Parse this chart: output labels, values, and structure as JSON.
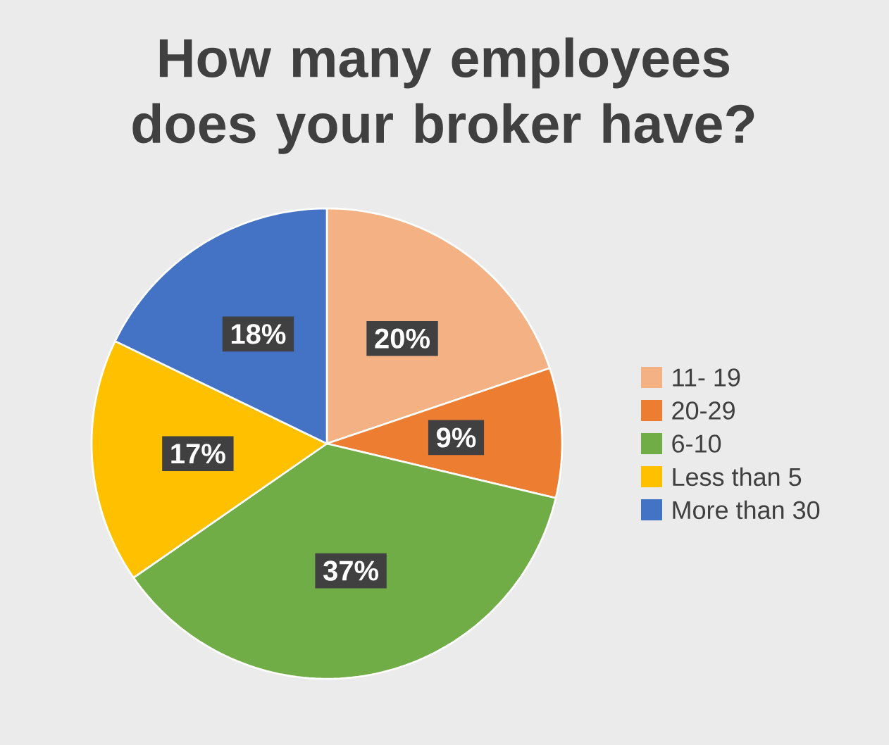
{
  "chart_data": {
    "type": "pie",
    "title": "How many employees does your broker have?",
    "categories": [
      "11- 19",
      "20-29",
      "6-10",
      "Less than 5",
      "More than 30"
    ],
    "values": [
      20,
      9,
      37,
      17,
      18
    ],
    "value_labels": [
      "20%",
      "9%",
      "37%",
      "17%",
      "18%"
    ],
    "colors": [
      "#f4b183",
      "#ed7d31",
      "#70ad47",
      "#ffc000",
      "#4472c4"
    ],
    "legend": "right"
  }
}
